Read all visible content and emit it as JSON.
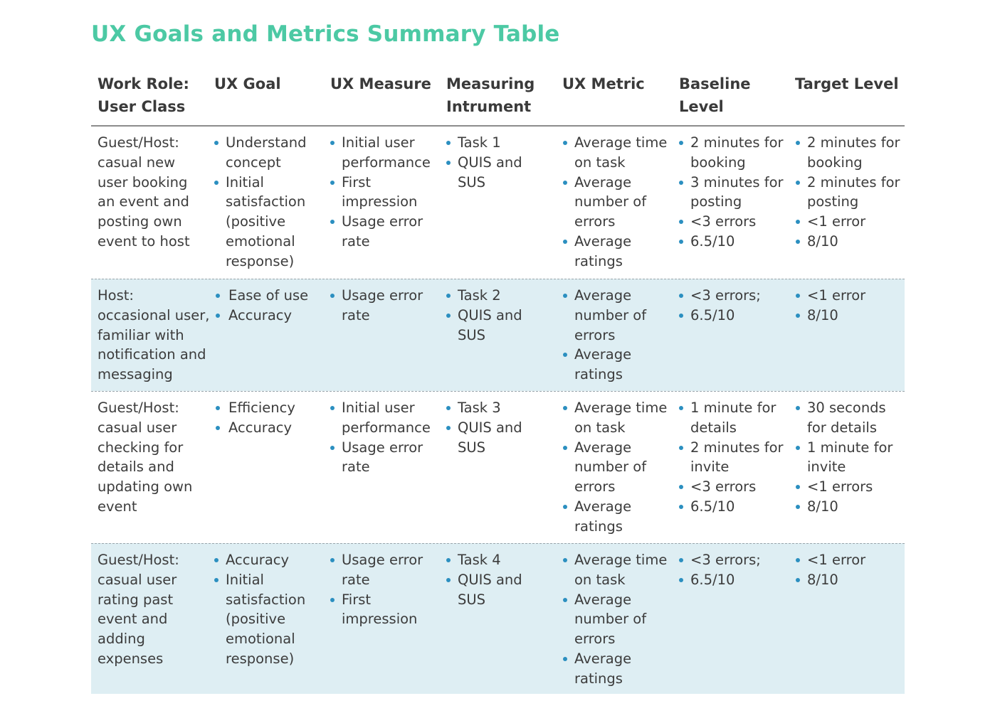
{
  "title": "UX Goals and Metrics Summary Table",
  "headers": [
    [
      "Work Role:",
      "User Class"
    ],
    [
      "UX Goal"
    ],
    [
      "UX Measure"
    ],
    [
      "Measuring",
      "Intrument"
    ],
    [
      "UX Metric"
    ],
    [
      "Baseline",
      "Level"
    ],
    [
      "Target Level"
    ]
  ],
  "rows": [
    {
      "shaded": false,
      "cells": [
        {
          "type": "text",
          "lines": [
            "Guest/Host:",
            "casual new",
            "user booking",
            "an event and",
            "posting own",
            "event to host"
          ]
        },
        {
          "type": "list",
          "items": [
            [
              "Understand",
              "concept"
            ],
            [
              "Initial",
              "satisfaction",
              "(positive",
              "emotional",
              "response)"
            ]
          ]
        },
        {
          "type": "list",
          "items": [
            [
              "Initial user",
              "performance"
            ],
            [
              "First",
              "impression"
            ],
            [
              "Usage error",
              "rate"
            ]
          ]
        },
        {
          "type": "list",
          "items": [
            [
              "Task 1"
            ],
            [
              "QUIS and",
              "SUS"
            ]
          ]
        },
        {
          "type": "list",
          "items": [
            [
              "Average time",
              "on task"
            ],
            [
              "Average",
              "number of",
              "errors"
            ],
            [
              "Average",
              "ratings"
            ]
          ]
        },
        {
          "type": "list",
          "items": [
            [
              "2 minutes for",
              "booking"
            ],
            [
              "3 minutes for",
              "posting"
            ],
            [
              "<3 errors"
            ],
            [
              "6.5/10"
            ]
          ]
        },
        {
          "type": "list",
          "items": [
            [
              "2 minutes for",
              "booking"
            ],
            [
              "2 minutes for",
              "posting"
            ],
            [
              "<1 error"
            ],
            [
              "8/10"
            ]
          ]
        }
      ]
    },
    {
      "shaded": true,
      "cells": [
        {
          "type": "text",
          "lines": [
            "Host:",
            "occasional user,",
            "familiar with",
            "notification and",
            "messaging"
          ]
        },
        {
          "type": "list",
          "indent": true,
          "items": [
            [
              "Ease of use"
            ],
            [
              "Accuracy"
            ]
          ]
        },
        {
          "type": "list",
          "items": [
            [
              "Usage error",
              "rate"
            ]
          ]
        },
        {
          "type": "list",
          "items": [
            [
              "Task 2"
            ],
            [
              "QUIS and",
              "SUS"
            ]
          ]
        },
        {
          "type": "list",
          "items": [
            [
              "Average",
              "number of",
              "errors"
            ],
            [
              "Average",
              "ratings"
            ]
          ]
        },
        {
          "type": "list",
          "items": [
            [
              "<3 errors;"
            ],
            [
              "6.5/10"
            ]
          ]
        },
        {
          "type": "list",
          "items": [
            [
              "<1 error"
            ],
            [
              "8/10"
            ]
          ]
        }
      ]
    },
    {
      "shaded": false,
      "cells": [
        {
          "type": "text",
          "lines": [
            "Guest/Host:",
            "casual user",
            "checking for",
            "details and",
            "updating own",
            "event"
          ]
        },
        {
          "type": "list",
          "indent": true,
          "items": [
            [
              "Efficiency"
            ],
            [
              "Accuracy"
            ]
          ]
        },
        {
          "type": "list",
          "items": [
            [
              "Initial user",
              "performance"
            ],
            [
              "Usage error",
              "rate"
            ]
          ]
        },
        {
          "type": "list",
          "items": [
            [
              "Task 3"
            ],
            [
              "QUIS and",
              "SUS"
            ]
          ]
        },
        {
          "type": "list",
          "items": [
            [
              "Average time",
              "on task"
            ],
            [
              "Average",
              "number of",
              "errors"
            ],
            [
              "Average",
              "ratings"
            ]
          ]
        },
        {
          "type": "list",
          "items": [
            [
              "1 minute for",
              "details"
            ],
            [
              "2 minutes for",
              "invite"
            ],
            [
              "<3 errors"
            ],
            [
              "6.5/10"
            ]
          ]
        },
        {
          "type": "list",
          "items": [
            [
              "30 seconds",
              "for details"
            ],
            [
              "1 minute for",
              "invite"
            ],
            [
              "<1 errors"
            ],
            [
              "8/10"
            ]
          ]
        }
      ]
    },
    {
      "shaded": true,
      "cells": [
        {
          "type": "text",
          "lines": [
            "Guest/Host:",
            "casual user",
            "rating past",
            "event and",
            "adding",
            "expenses"
          ]
        },
        {
          "type": "list",
          "items": [
            [
              "Accuracy"
            ],
            [
              "Initial",
              "satisfaction",
              "(positive",
              "emotional",
              "response)"
            ]
          ]
        },
        {
          "type": "list",
          "items": [
            [
              "Usage error",
              "rate"
            ],
            [
              "First",
              "impression"
            ]
          ]
        },
        {
          "type": "list",
          "items": [
            [
              "Task 4"
            ],
            [
              "QUIS and",
              "SUS"
            ]
          ]
        },
        {
          "type": "list",
          "items": [
            [
              "Average time",
              "on task"
            ],
            [
              "Average",
              "number of",
              "errors"
            ],
            [
              "Average",
              "ratings"
            ]
          ]
        },
        {
          "type": "list",
          "items": [
            [
              "<3 errors;"
            ],
            [
              "6.5/10"
            ]
          ]
        },
        {
          "type": "list",
          "items": [
            [
              "<1 error"
            ],
            [
              "8/10"
            ]
          ]
        }
      ]
    }
  ],
  "colors": {
    "title": "#4cc9a4",
    "bullet": "#2b8fc0",
    "shaded_row": "#deeef3",
    "text": "#3a3a3a"
  }
}
